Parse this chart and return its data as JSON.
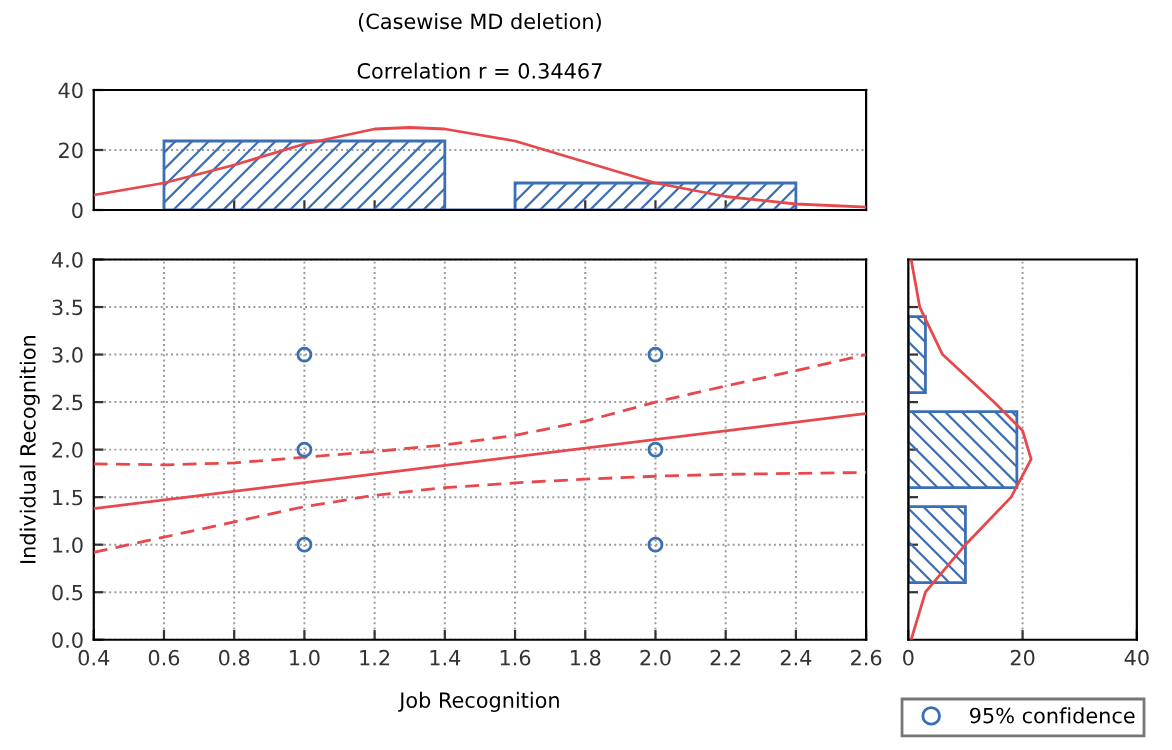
{
  "chart_data": [
    {
      "type": "histogram",
      "title": "(Casewise MD deletion)",
      "subtitle": "Correlation r = 0.34467",
      "bins": [
        0.6,
        1.4,
        1.6,
        2.4
      ],
      "values": [
        23,
        0,
        9
      ],
      "color": "#3a6fb5",
      "series": [
        {
          "type": "line",
          "color": "#e8474b",
          "x": [
            0.4,
            0.6,
            0.8,
            1.0,
            1.2,
            1.3,
            1.4,
            1.6,
            1.8,
            2.0,
            2.2,
            2.4,
            2.6
          ],
          "values": [
            5,
            9,
            15,
            22,
            27,
            27.5,
            27,
            23,
            16,
            9,
            4.5,
            2,
            1
          ]
        }
      ],
      "xlim": [
        0.4,
        2.6
      ],
      "xticks": [
        {
          "value": 0.6,
          "label": null
        },
        {
          "value": 0.8,
          "label": null
        },
        {
          "value": 1.0,
          "label": null
        },
        {
          "value": 1.2,
          "label": null
        },
        {
          "value": 1.4,
          "label": null
        },
        {
          "value": 1.6,
          "label": null
        },
        {
          "value": 1.8,
          "label": null
        },
        {
          "value": 2.0,
          "label": null
        },
        {
          "value": 2.2,
          "label": null
        },
        {
          "value": 2.4,
          "label": null
        }
      ],
      "ylim": [
        0,
        40
      ],
      "yticks": [
        0,
        20,
        40
      ],
      "tick_labels": "y",
      "grid": "y"
    },
    {
      "type": "scatter",
      "xlabel": "Job Recognition",
      "ylabel": "Individual Recognition",
      "series": [
        {
          "type": "scatter",
          "name": "95% confidence",
          "color": "#3a6fb5",
          "marker": "circle",
          "x": [
            1.0,
            1.0,
            1.0,
            2.0,
            2.0,
            2.0
          ],
          "values": [
            1,
            2,
            3,
            1,
            2,
            3
          ]
        },
        {
          "type": "line",
          "color": "#e8474b",
          "line_style": "solid",
          "x": [
            0.4,
            2.6
          ],
          "values": [
            1.38,
            2.38
          ]
        },
        {
          "type": "line",
          "color": "#e8474b",
          "line_style": "dashed",
          "x": [
            0.4,
            0.6,
            0.8,
            1.0,
            1.2,
            1.4,
            1.6,
            1.8,
            2.0,
            2.2,
            2.4,
            2.6
          ],
          "values": [
            1.85,
            1.84,
            1.86,
            1.92,
            1.98,
            2.05,
            2.15,
            2.3,
            2.5,
            2.67,
            2.83,
            3.0
          ]
        },
        {
          "type": "line",
          "color": "#e8474b",
          "line_style": "dashed",
          "x": [
            0.4,
            0.6,
            0.8,
            1.0,
            1.2,
            1.4,
            1.6,
            1.8,
            2.0,
            2.2,
            2.4,
            2.6
          ],
          "values": [
            0.92,
            1.08,
            1.24,
            1.4,
            1.52,
            1.6,
            1.65,
            1.69,
            1.72,
            1.74,
            1.75,
            1.76
          ]
        }
      ],
      "xlim": [
        0.4,
        2.6
      ],
      "xticks": [
        0.4,
        0.6,
        0.8,
        {
          "value": 1,
          "label": "1.0"
        },
        1.2,
        1.4,
        1.6,
        1.8,
        {
          "value": 2,
          "label": "2.0"
        },
        2.2,
        2.4,
        2.6
      ],
      "ylim": [
        0.0,
        4.0
      ],
      "yticks": [
        {
          "value": 0,
          "label": "0.0"
        },
        0.5,
        {
          "value": 1,
          "label": "1.0"
        },
        1.5,
        {
          "value": 2,
          "label": "2.0"
        },
        2.5,
        {
          "value": 3,
          "label": "3.0"
        },
        3.5,
        {
          "value": 4,
          "label": "4.0"
        }
      ],
      "grid": true,
      "legend": "bottom right"
    },
    {
      "type": "histogram",
      "orientation": "horizontal",
      "bins": [
        0.6,
        1.4,
        1.6,
        2.4,
        2.6,
        3.4
      ],
      "values": [
        10,
        0,
        19,
        0,
        3
      ],
      "color": "#3a6fb5",
      "series": [
        {
          "type": "line",
          "color": "#e8474b",
          "x": [
            0.0,
            0.5,
            1.0,
            1.5,
            1.9,
            2.2,
            2.5,
            3.0,
            3.5,
            4.0
          ],
          "values": [
            0.5,
            3,
            10,
            18,
            21.5,
            20,
            15,
            6,
            2,
            0.5
          ]
        }
      ],
      "xlim": [
        0,
        40
      ],
      "xticks": [
        0,
        20,
        40
      ],
      "ylim": [
        0.0,
        4.0
      ],
      "yticks": [
        {
          "value": 0.5,
          "label": null
        },
        {
          "value": 1.0,
          "label": null
        },
        {
          "value": 1.5,
          "label": null
        },
        {
          "value": 2.0,
          "label": null
        },
        {
          "value": 2.5,
          "label": null
        },
        {
          "value": 3.0,
          "label": null
        },
        {
          "value": 3.5,
          "label": null
        }
      ],
      "tick_labels": "x",
      "grid": "x"
    }
  ]
}
